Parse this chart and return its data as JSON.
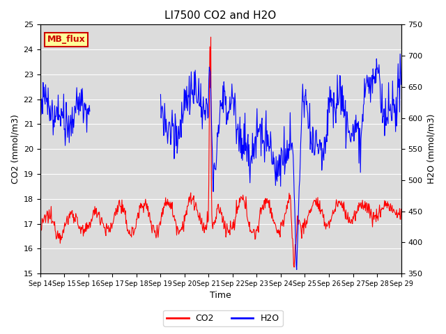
{
  "title": "LI7500 CO2 and H2O",
  "xlabel": "Time",
  "ylabel_left": "CO2 (mmol/m3)",
  "ylabel_right": "H2O (mmol/m3)",
  "ylim_left": [
    15.0,
    25.0
  ],
  "ylim_right": [
    350,
    750
  ],
  "yticks_left": [
    15.0,
    16.0,
    17.0,
    18.0,
    19.0,
    20.0,
    21.0,
    22.0,
    23.0,
    24.0,
    25.0
  ],
  "yticks_right": [
    350,
    400,
    450,
    500,
    550,
    600,
    650,
    700,
    750
  ],
  "xtick_labels": [
    "Sep 14",
    "Sep 15",
    "Sep 16",
    "Sep 17",
    "Sep 18",
    "Sep 19",
    "Sep 20",
    "Sep 21",
    "Sep 22",
    "Sep 23",
    "Sep 24",
    "Sep 25",
    "Sep 26",
    "Sep 27",
    "Sep 28",
    "Sep 29"
  ],
  "co2_color": "#FF0000",
  "h2o_color": "#0000FF",
  "bg_color": "#DCDCDC",
  "annotation_text": "MB_flux",
  "annotation_bg": "#FFFF99",
  "annotation_border": "#CC0000",
  "legend_labels": [
    "CO2",
    "H2O"
  ],
  "linewidth": 0.8
}
